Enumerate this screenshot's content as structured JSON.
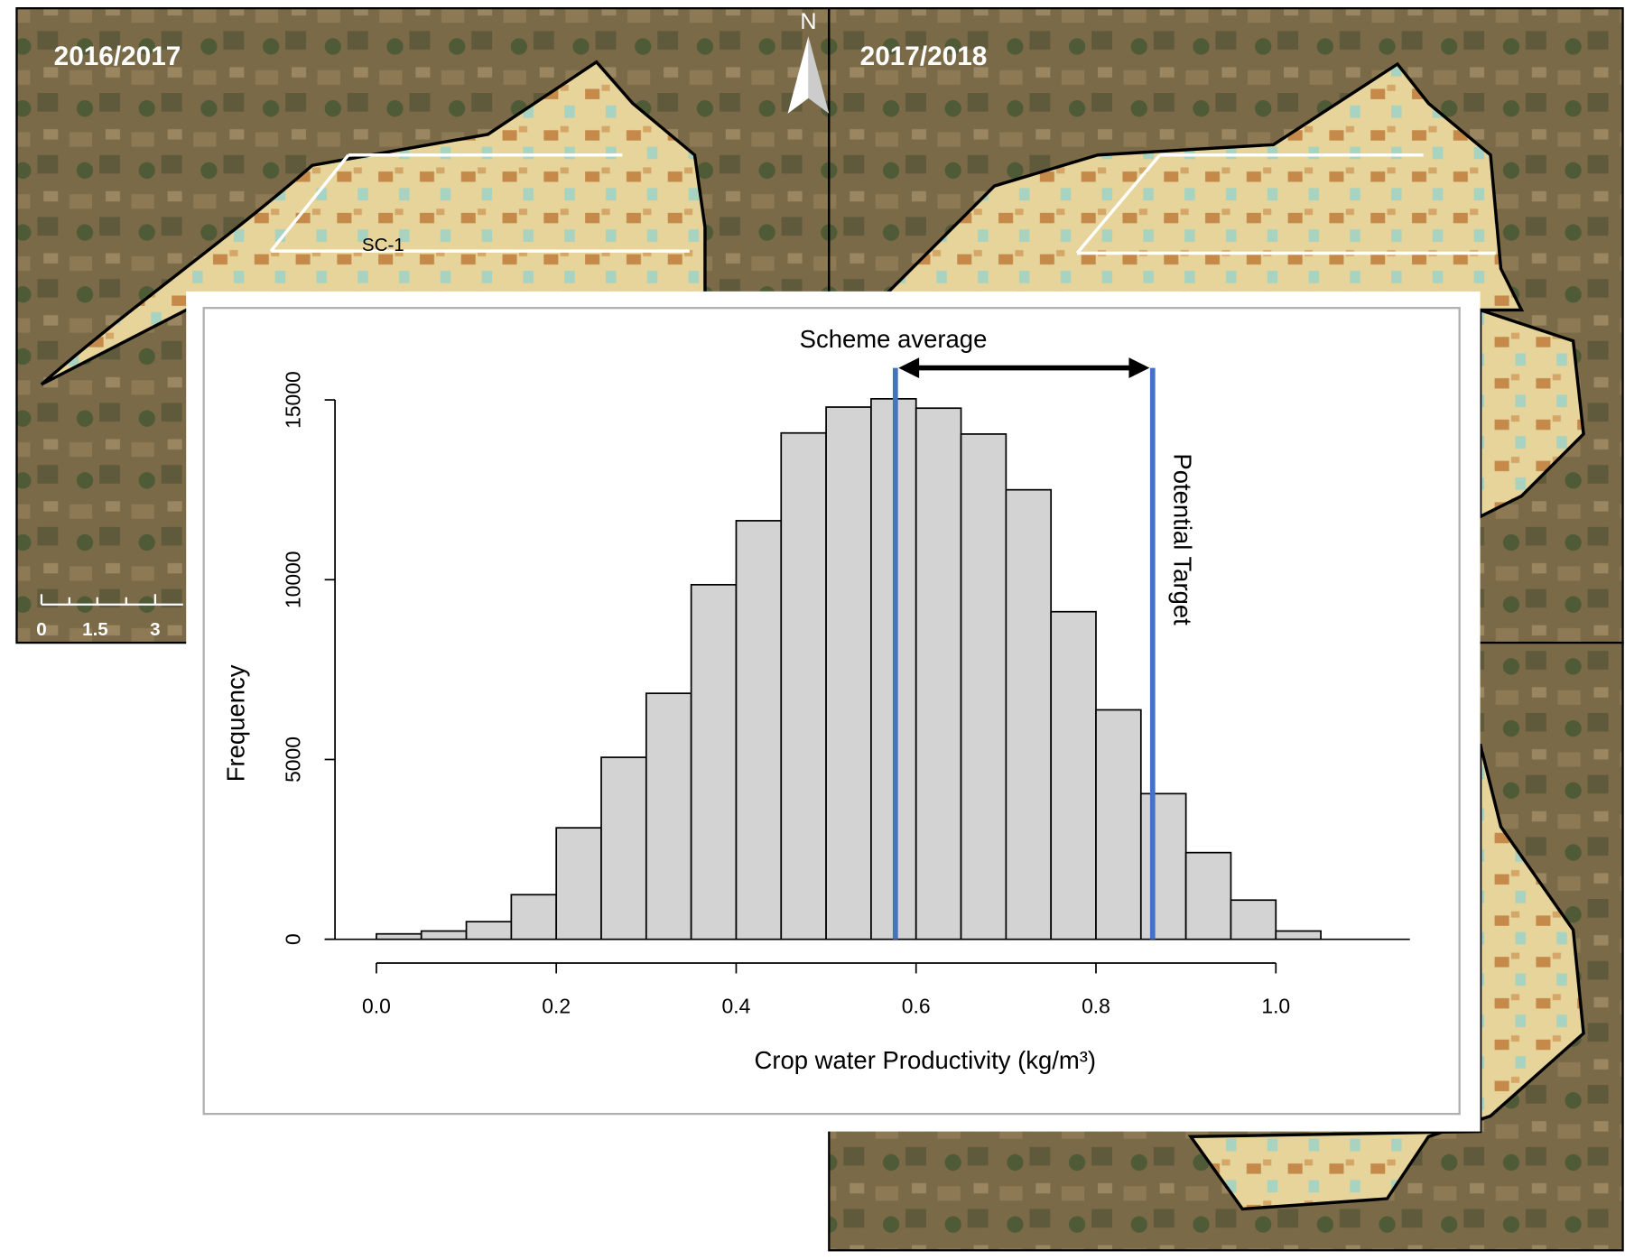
{
  "maps": {
    "panel_labels": [
      "2016/2017",
      "2017/2018"
    ],
    "north": "N",
    "zone_label": "SC-1",
    "scale_labels": [
      "0",
      "1.5",
      "3"
    ]
  },
  "chart_data": {
    "type": "histogram",
    "x_label": "Crop water Productivity (kg/m³)",
    "y_label": "Frequency",
    "bins": [
      0,
      0.05,
      0.1,
      0.15,
      0.2,
      0.25,
      0.3,
      0.35,
      0.4,
      0.45,
      0.5,
      0.55,
      0.6,
      0.65,
      0.7,
      0.75,
      0.8,
      0.85,
      0.9,
      0.95,
      1.0,
      1.05
    ],
    "values": [
      150,
      230,
      490,
      1240,
      3100,
      5060,
      6840,
      9860,
      11640,
      14080,
      14800,
      15030,
      14770,
      14050,
      12500,
      9110,
      6380,
      4050,
      2410,
      1090,
      230
    ],
    "color": "#d3d3d3",
    "xlim": [
      -0.046,
      1.149
    ],
    "ylim": [
      0,
      16500
    ],
    "xticks": [
      {
        "value": 0,
        "label": "0.0"
      },
      {
        "value": 0.2,
        "label": "0.2"
      },
      {
        "value": 0.4,
        "label": "0.4"
      },
      {
        "value": 0.6,
        "label": "0.6"
      },
      {
        "value": 0.8,
        "label": "0.8"
      },
      {
        "value": 1.0,
        "label": "1.0"
      }
    ],
    "yticks": [
      0,
      5000,
      10000,
      15000
    ],
    "reference_lines": [
      {
        "x": 0.577,
        "label": "Scheme average",
        "color": "#4472c4"
      },
      {
        "x": 0.863,
        "label": "Potential Target",
        "color": "#4472c4"
      }
    ]
  }
}
